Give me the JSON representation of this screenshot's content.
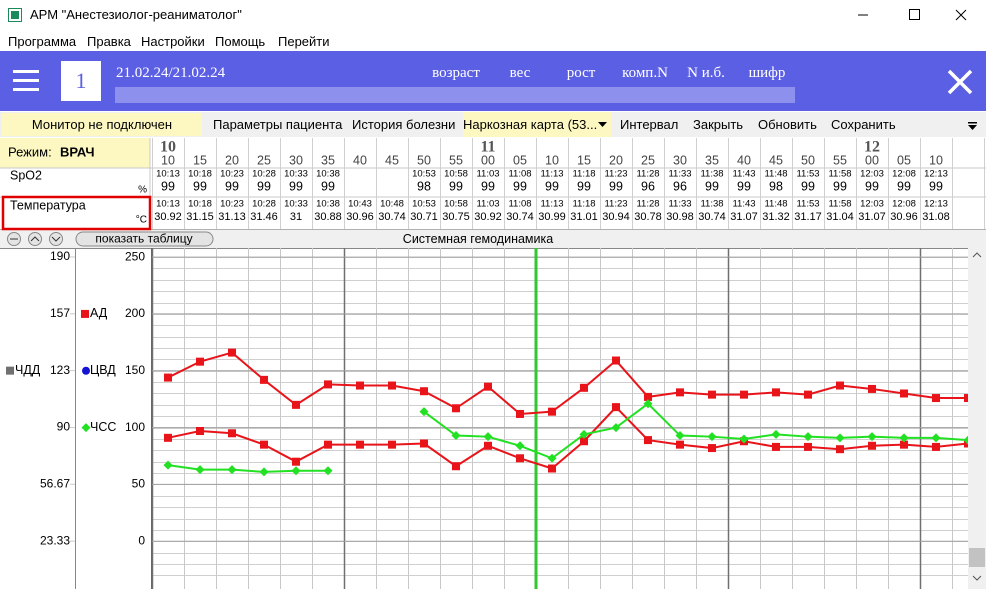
{
  "window": {
    "title": "АРМ \"Анестезиолог-реаниматолог\""
  },
  "menu": [
    "Программа",
    "Правка",
    "Настройки",
    "Помощь",
    "Перейти"
  ],
  "header": {
    "record_number": "1",
    "dates": "21.02.24/21.02.24",
    "fields": [
      "возраст",
      "вес",
      "рост",
      "комп.N",
      "N и.б.",
      "шифр"
    ]
  },
  "toolbar": {
    "status": "Монитор не подключен",
    "tabs": [
      "Параметры пациента",
      "История болезни",
      "Наркозная карта (53...",
      "Интервал",
      "Закрыть",
      "Обновить",
      "Сохранить"
    ]
  },
  "table": {
    "mode_label": "Режим:",
    "mode": "ВРАЧ",
    "columns": [
      {
        "hour": "10",
        "minute": "10"
      },
      {
        "minute": "15"
      },
      {
        "minute": "20"
      },
      {
        "minute": "25"
      },
      {
        "minute": "30"
      },
      {
        "minute": "35"
      },
      {
        "minute": "40"
      },
      {
        "minute": "45"
      },
      {
        "minute": "50"
      },
      {
        "minute": "55"
      },
      {
        "hour": "11",
        "minute": "00"
      },
      {
        "minute": "05"
      },
      {
        "minute": "10"
      },
      {
        "minute": "15"
      },
      {
        "minute": "20"
      },
      {
        "minute": "25"
      },
      {
        "minute": "30"
      },
      {
        "minute": "35"
      },
      {
        "minute": "40"
      },
      {
        "minute": "45"
      },
      {
        "minute": "50"
      },
      {
        "minute": "55"
      },
      {
        "hour": "12",
        "minute": "00"
      },
      {
        "minute": "05"
      },
      {
        "minute": "10"
      }
    ],
    "rows": [
      {
        "label": "SpO2",
        "unit": "%",
        "cells": [
          [
            "10:13",
            "99"
          ],
          [
            "10:18",
            "99"
          ],
          [
            "10:23",
            "99"
          ],
          [
            "10:28",
            "99"
          ],
          [
            "10:33",
            "99"
          ],
          [
            "10:38",
            "99"
          ],
          null,
          null,
          [
            "10:53",
            "98"
          ],
          [
            "10:58",
            "99"
          ],
          [
            "11:03",
            "99"
          ],
          [
            "11:08",
            "99"
          ],
          [
            "11:13",
            "99"
          ],
          [
            "11:18",
            "99"
          ],
          [
            "11:23",
            "99"
          ],
          [
            "11:28",
            "96"
          ],
          [
            "11:33",
            "96"
          ],
          [
            "11:38",
            "99"
          ],
          [
            "11:43",
            "99"
          ],
          [
            "11:48",
            "98"
          ],
          [
            "11:53",
            "99"
          ],
          [
            "11:58",
            "99"
          ],
          [
            "12:03",
            "99"
          ],
          [
            "12:08",
            "99"
          ],
          [
            "12:13",
            "99"
          ]
        ]
      },
      {
        "label": "Температура",
        "unit": "°C",
        "cells": [
          [
            "10:13",
            "30.92"
          ],
          [
            "10:18",
            "31.15"
          ],
          [
            "10:23",
            "31.13"
          ],
          [
            "10:28",
            "31.46"
          ],
          [
            "10:33",
            "31"
          ],
          [
            "10:38",
            "30.88"
          ],
          [
            "10:43",
            "30.96"
          ],
          [
            "10:48",
            "30.74"
          ],
          [
            "10:53",
            "30.71"
          ],
          [
            "10:58",
            "30.75"
          ],
          [
            "11:03",
            "30.92"
          ],
          [
            "11:08",
            "30.74"
          ],
          [
            "11:13",
            "30.99"
          ],
          [
            "11:18",
            "31.01"
          ],
          [
            "11:23",
            "30.94"
          ],
          [
            "11:28",
            "30.78"
          ],
          [
            "11:33",
            "30.98"
          ],
          [
            "11:38",
            "30.74"
          ],
          [
            "11:43",
            "31.07"
          ],
          [
            "11:48",
            "31.32"
          ],
          [
            "11:53",
            "31.17"
          ],
          [
            "11:58",
            "31.04"
          ],
          [
            "12:03",
            "31.07"
          ],
          [
            "12:08",
            "30.96"
          ],
          [
            "12:13",
            "31.08"
          ]
        ]
      }
    ]
  },
  "panel": {
    "show_table": "показать таблицу"
  },
  "chart_data": {
    "type": "line",
    "title": "Системная гемодинамика",
    "grid": true,
    "ylim": [
      -42,
      258
    ],
    "yticks": [
      0,
      50,
      100,
      150,
      200,
      250
    ],
    "y2lim": [
      -4.74,
      195.26
    ],
    "y2ticks": [
      {
        "value": 23.33,
        "label": "23.33"
      },
      {
        "value": 56.67,
        "label": "56.67"
      },
      90,
      {
        "value": 123.33,
        "label": "123"
      },
      {
        "value": 156.67,
        "label": "157"
      },
      190
    ],
    "series": [
      {
        "name": "ЧДД",
        "color": "#707070",
        "marker": "square",
        "axis": "y2",
        "values": []
      },
      {
        "name": "ЦВД",
        "color": "#1414d2",
        "marker": "circle",
        "values": []
      },
      {
        "name": "АД",
        "color": "#e8141a",
        "marker": "square",
        "values": [
          [
            144,
            91
          ],
          [
            158,
            97
          ],
          [
            166,
            95
          ],
          [
            142,
            85
          ],
          [
            120,
            70
          ],
          [
            138,
            85
          ],
          [
            137,
            85
          ],
          [
            137,
            85
          ],
          [
            132,
            86
          ],
          [
            117,
            66
          ],
          [
            136,
            84
          ],
          [
            112,
            73
          ],
          [
            114,
            64
          ],
          [
            135,
            88
          ],
          [
            159,
            118
          ],
          [
            127,
            89
          ],
          [
            131,
            85
          ],
          [
            129,
            82
          ],
          [
            129,
            88
          ],
          [
            131,
            83
          ],
          [
            129,
            83
          ],
          [
            137,
            81
          ],
          [
            134,
            84
          ],
          [
            130,
            85
          ],
          [
            126,
            83
          ],
          [
            126,
            86
          ]
        ]
      },
      {
        "name": "ЧСС",
        "color": "#22e022",
        "marker": "diamond",
        "values": [
          67,
          63,
          63,
          61,
          62,
          62,
          null,
          null,
          114,
          93,
          92,
          84,
          73,
          94,
          100,
          121,
          93,
          92,
          90,
          94,
          92,
          91,
          92,
          91,
          91,
          89
        ]
      }
    ]
  }
}
